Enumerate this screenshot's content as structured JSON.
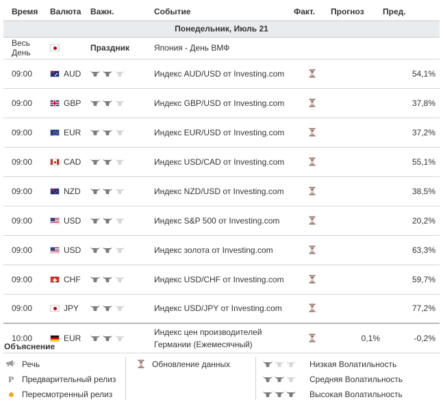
{
  "header": {
    "time": "Время",
    "currency": "Валюта",
    "importance": "Важн.",
    "event": "Событие",
    "actual": "Факт.",
    "forecast": "Прогноз",
    "previous": "Пред."
  },
  "day_label": "Понедельник, Июль 21",
  "holiday": {
    "time": "Весь День",
    "flag": "jp",
    "label": "Праздник",
    "event": "Япония - День ВМФ"
  },
  "rows": [
    {
      "time": "09:00",
      "flag": "au",
      "currency": "AUD",
      "importance": 2,
      "event": "Индекс AUD/USD от Investing.com",
      "actual": "",
      "forecast": "",
      "previous": "54,1%"
    },
    {
      "time": "09:00",
      "flag": "gb",
      "currency": "GBP",
      "importance": 2,
      "event": "Индекс GBP/USD от Investing.com",
      "actual": "",
      "forecast": "",
      "previous": "37,8%"
    },
    {
      "time": "09:00",
      "flag": "eu",
      "currency": "EUR",
      "importance": 2,
      "event": "Индекс EUR/USD от Investing.com",
      "actual": "",
      "forecast": "",
      "previous": "37,2%"
    },
    {
      "time": "09:00",
      "flag": "ca",
      "currency": "CAD",
      "importance": 2,
      "event": "Индекс USD/CAD от Investing.com",
      "actual": "",
      "forecast": "",
      "previous": "55,1%"
    },
    {
      "time": "09:00",
      "flag": "nz",
      "currency": "NZD",
      "importance": 2,
      "event": "Индекс NZD/USD от Investing.com",
      "actual": "",
      "forecast": "",
      "previous": "38,5%"
    },
    {
      "time": "09:00",
      "flag": "us",
      "currency": "USD",
      "importance": 2,
      "event": "Индекс S&P 500 от Investing.com",
      "actual": "",
      "forecast": "",
      "previous": "20,2%"
    },
    {
      "time": "09:00",
      "flag": "us",
      "currency": "USD",
      "importance": 2,
      "event": "Индекс золота от Investing.com",
      "actual": "",
      "forecast": "",
      "previous": "63,3%"
    },
    {
      "time": "09:00",
      "flag": "ch",
      "currency": "CHF",
      "importance": 2,
      "event": "Индекс USD/CHF от Investing.com",
      "actual": "",
      "forecast": "",
      "previous": "59,7%"
    },
    {
      "time": "09:00",
      "flag": "jp",
      "currency": "JPY",
      "importance": 2,
      "event": "Индекс USD/JPY от Investing.com",
      "actual": "",
      "forecast": "",
      "previous": "77,2%"
    },
    {
      "time": "10:00",
      "flag": "de",
      "currency": "EUR",
      "importance": 2,
      "event": "Индекс цен производителей Германии (Ежемесячный)",
      "actual": "",
      "forecast": "0,1%",
      "previous": "-0,2%"
    }
  ],
  "legend": {
    "title": "Объяснение",
    "speech": "Речь",
    "preliminary": "Предварительный релиз",
    "revised": "Пересмотренный релиз",
    "data_update": "Обновление данных",
    "low": "Низкая Волатильность",
    "medium": "Средняя Волатильность",
    "high": "Высокая Волатильность"
  },
  "colors": {
    "bull_active": "#7d7d7d",
    "bull_inactive": "#d6d6d6",
    "hourglass": "#c0392b",
    "revised_dot": "#f1a928",
    "day_bar": "#e9ecee"
  }
}
